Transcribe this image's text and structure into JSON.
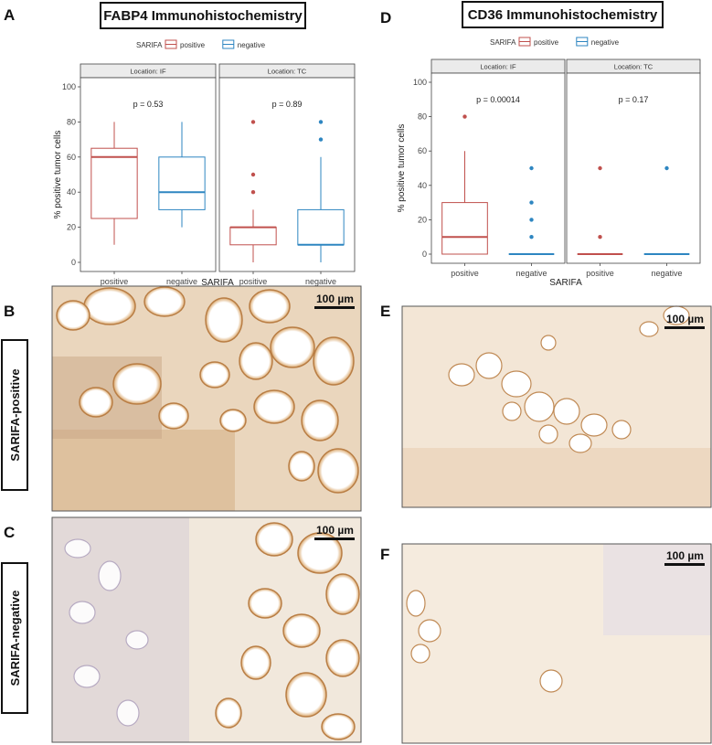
{
  "panels": {
    "A": "A",
    "B": "B",
    "C": "C",
    "D": "D",
    "E": "E",
    "F": "F"
  },
  "side_labels": {
    "positive": "SARIFA-positive",
    "negative": "SARIFA-negative"
  },
  "scale_bar": "100 µm",
  "colors": {
    "positive": "#c0504d",
    "negative": "#2e86c1",
    "strip": "#ebebeb",
    "panel_border": "#555555"
  },
  "chart_data": [
    {
      "type": "box",
      "title": "FABP4 Immunohistochemistry",
      "legend_title": "SARIFA",
      "legend": [
        "positive",
        "negative"
      ],
      "legend_placement": "top",
      "xlabel": "SARIFA",
      "ylabel": "% positive tumor cells",
      "ylim": [
        0,
        100
      ],
      "yticks": [
        0,
        20,
        40,
        60,
        80,
        100
      ],
      "categories": [
        "positive",
        "negative"
      ],
      "facets": [
        {
          "label": "Location: IF",
          "p": "p = 0.53",
          "boxes": [
            {
              "group": "positive",
              "min": 10,
              "q1": 25,
              "median": 60,
              "q3": 65,
              "max": 80,
              "outliers": []
            },
            {
              "group": "negative",
              "min": 20,
              "q1": 30,
              "median": 40,
              "q3": 60,
              "max": 80,
              "outliers": []
            }
          ]
        },
        {
          "label": "Location: TC",
          "p": "p = 0.89",
          "boxes": [
            {
              "group": "positive",
              "min": 0,
              "q1": 10,
              "median": 20,
              "q3": 20,
              "max": 30,
              "outliers": [
                40,
                50,
                80
              ]
            },
            {
              "group": "negative",
              "min": 0,
              "q1": 10,
              "median": 10,
              "q3": 30,
              "max": 60,
              "outliers": [
                70,
                80
              ]
            }
          ]
        }
      ]
    },
    {
      "type": "box",
      "title": "CD36 Immunohistochemistry",
      "legend_title": "SARIFA",
      "legend": [
        "positive",
        "negative"
      ],
      "legend_placement": "top",
      "xlabel": "SARIFA",
      "ylabel": "% positive tumor cells",
      "ylim": [
        0,
        100
      ],
      "yticks": [
        0,
        20,
        40,
        60,
        80,
        100
      ],
      "categories": [
        "positive",
        "negative"
      ],
      "facets": [
        {
          "label": "Location: IF",
          "p": "p = 0.00014",
          "boxes": [
            {
              "group": "positive",
              "min": 0,
              "q1": 0,
              "median": 10,
              "q3": 30,
              "max": 60,
              "outliers": [
                80
              ]
            },
            {
              "group": "negative",
              "min": 0,
              "q1": 0,
              "median": 0,
              "q3": 0,
              "max": 0,
              "outliers": [
                10,
                20,
                30,
                50
              ]
            }
          ]
        },
        {
          "label": "Location: TC",
          "p": "p = 0.17",
          "boxes": [
            {
              "group": "positive",
              "min": 0,
              "q1": 0,
              "median": 0,
              "q3": 0,
              "max": 0,
              "outliers": [
                10,
                50
              ]
            },
            {
              "group": "negative",
              "min": 0,
              "q1": 0,
              "median": 0,
              "q3": 0,
              "max": 0,
              "outliers": [
                50
              ]
            }
          ]
        }
      ]
    }
  ]
}
